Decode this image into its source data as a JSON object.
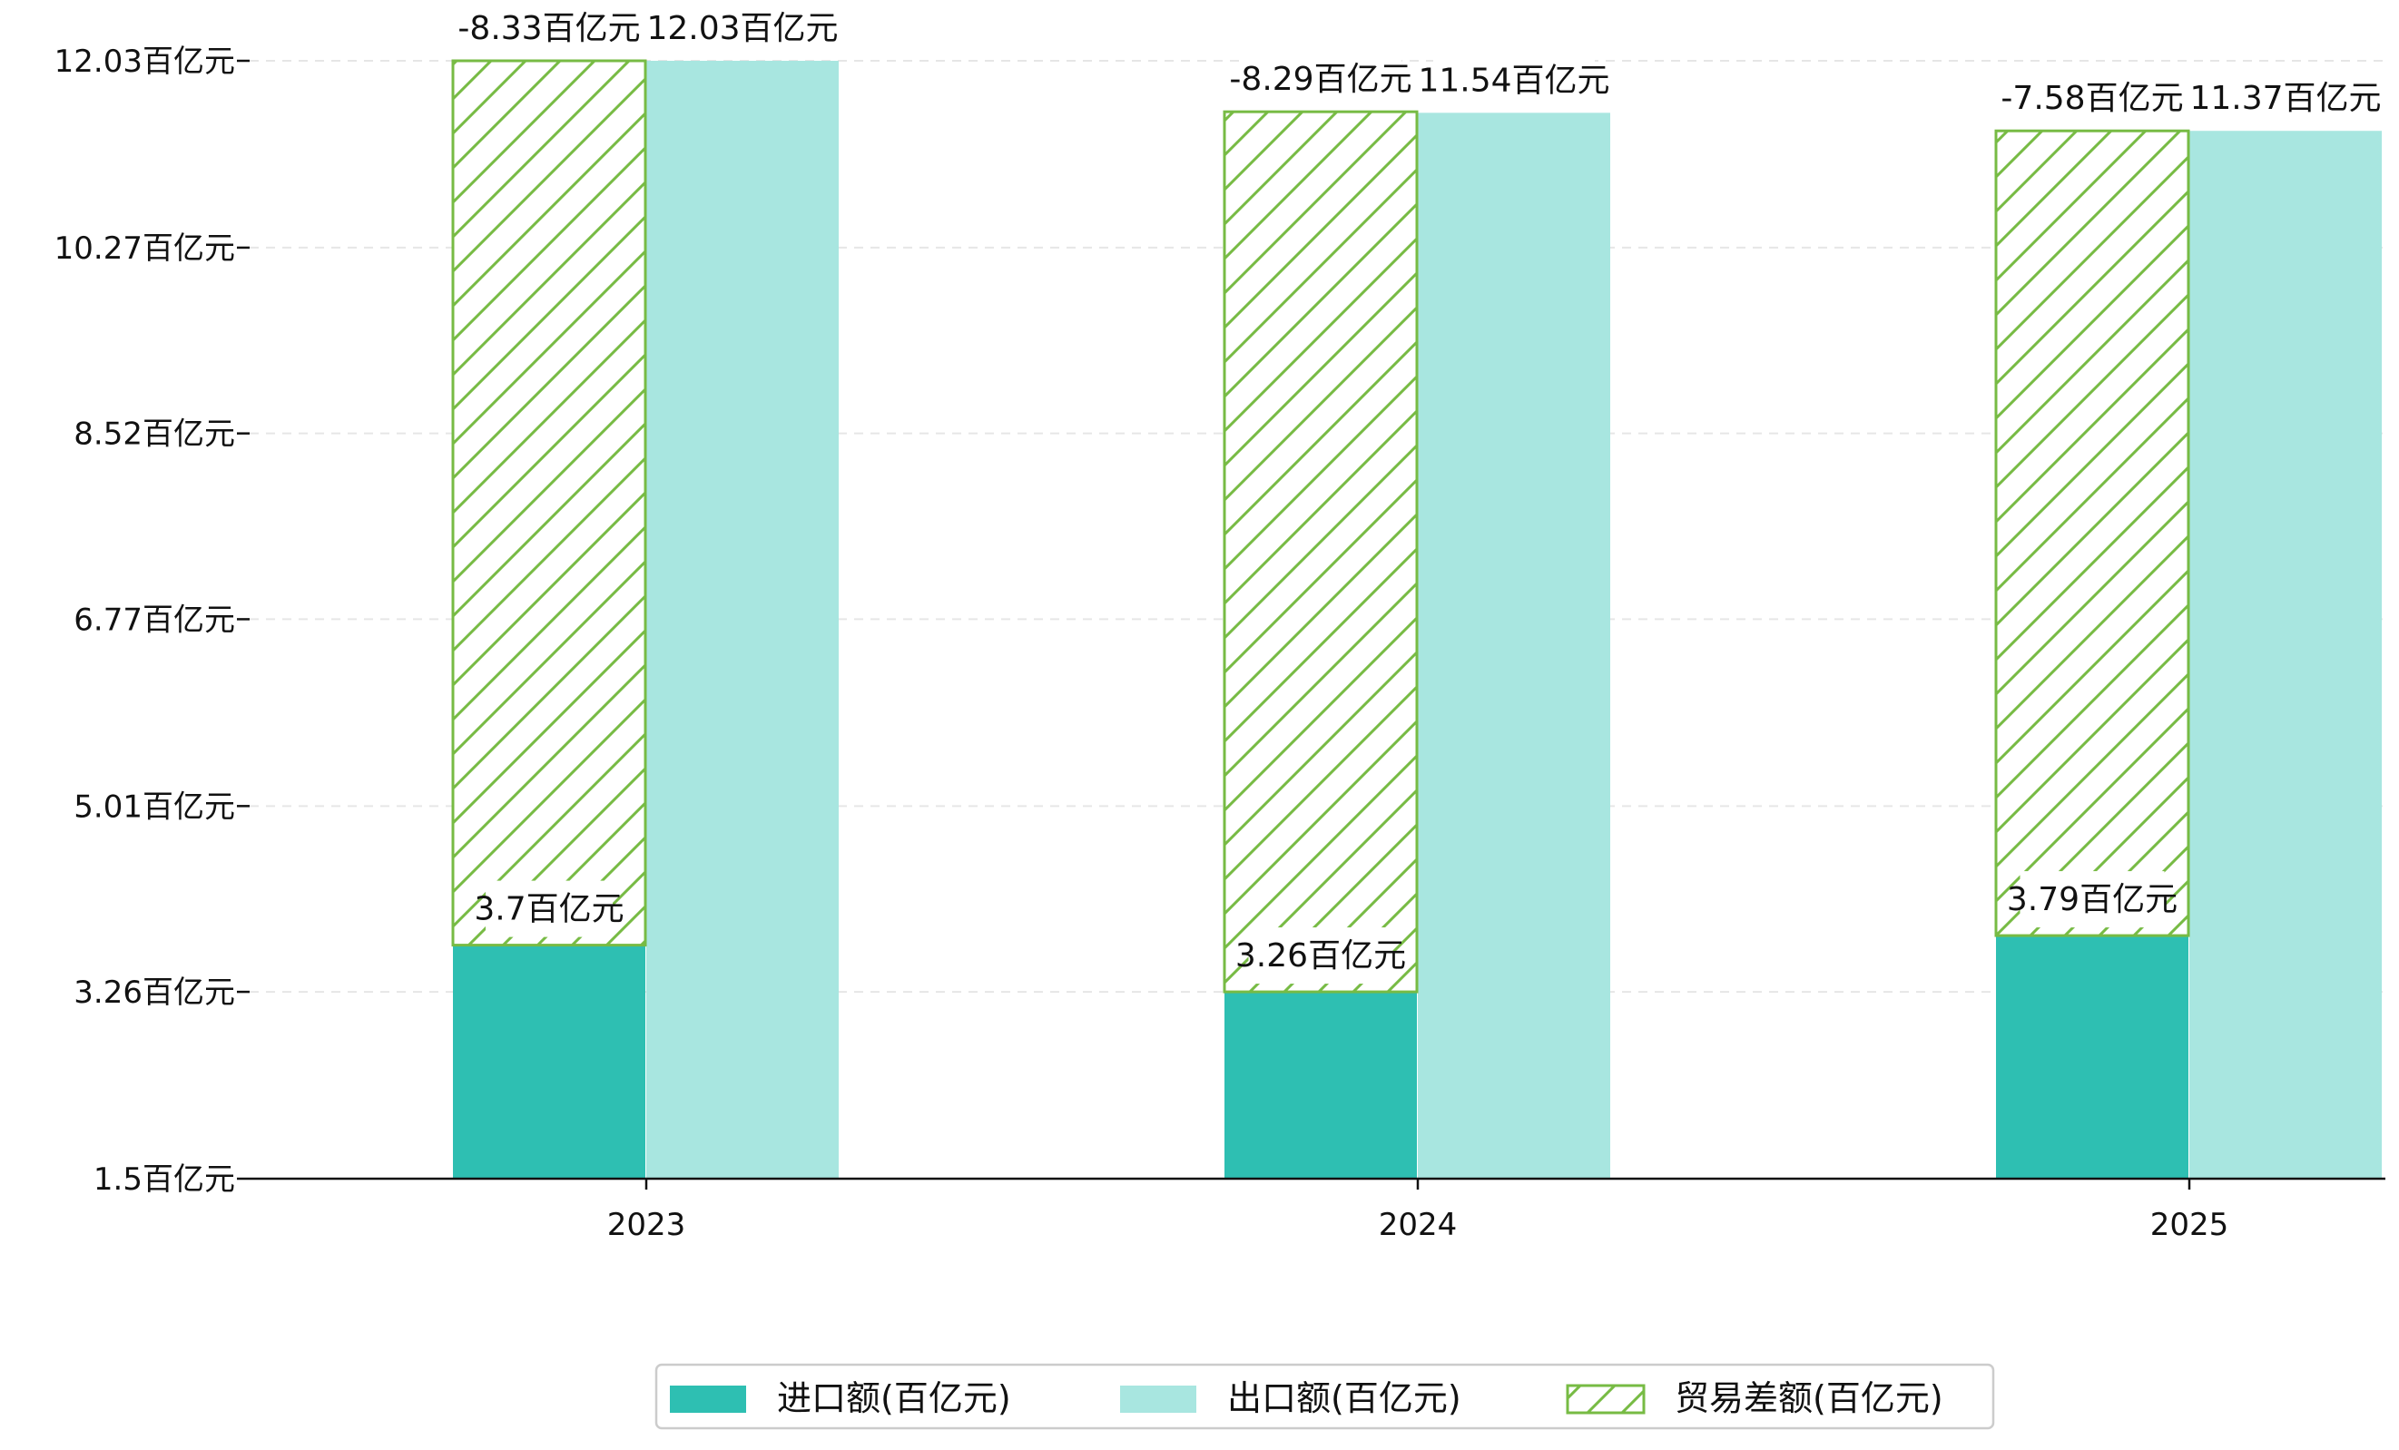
{
  "chart_data": {
    "type": "bar",
    "categories": [
      "2023",
      "2024",
      "2025"
    ],
    "series": [
      {
        "name": "进口额(百亿元)",
        "key": "import",
        "values": [
          3.7,
          3.26,
          3.79
        ],
        "labels": [
          "3.7百亿元",
          "3.26百亿元",
          "3.79百亿元"
        ],
        "color": "#2ebfb2"
      },
      {
        "name": "出口额(百亿元)",
        "key": "export",
        "values": [
          12.03,
          11.54,
          11.37
        ],
        "labels": [
          "12.03百亿元",
          "11.54百亿元",
          "11.37百亿元"
        ],
        "color": "#a8e6e0"
      },
      {
        "name": "贸易差额(百亿元)",
        "key": "balance",
        "values": [
          -8.33,
          -8.29,
          -7.58
        ],
        "labels": [
          "-8.33百亿元",
          "-8.29百亿元",
          "-7.58百亿元"
        ],
        "color": "#77bb44",
        "hatch": true
      }
    ],
    "y_ticks": [
      1.5,
      3.26,
      5.01,
      6.77,
      8.52,
      10.27,
      12.03
    ],
    "y_tick_labels": [
      "1.5百亿元",
      "3.26百亿元",
      "5.01百亿元",
      "6.77百亿元",
      "8.52百亿元",
      "10.27百亿元",
      "12.03百亿元"
    ],
    "ylim": [
      1.5,
      12.03
    ],
    "grid": "horizontal-dashed",
    "legend": "bottom-center"
  }
}
